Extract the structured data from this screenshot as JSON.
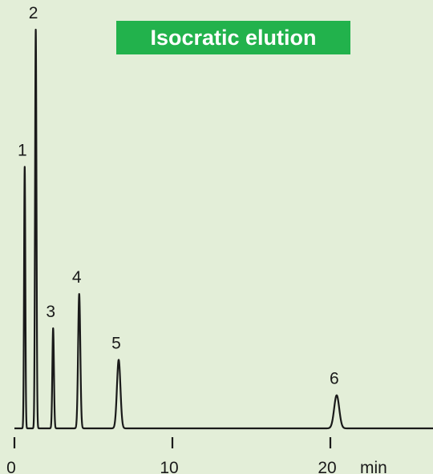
{
  "chart_data": {
    "type": "line",
    "title": "Isocratic elution",
    "xlabel": "min",
    "ylabel": "",
    "xlim": [
      0,
      26.5
    ],
    "ylim": [
      0,
      100
    ],
    "x_ticks": [
      0,
      10,
      20
    ],
    "grid": false,
    "baseline": 0,
    "peaks": [
      {
        "label": "1",
        "x": 0.65,
        "height": 65.6,
        "width": 0.04
      },
      {
        "label": "2",
        "x": 1.35,
        "height": 100,
        "width": 0.045
      },
      {
        "label": "3",
        "x": 2.45,
        "height": 25.1,
        "width": 0.05
      },
      {
        "label": "4",
        "x": 4.1,
        "height": 33.7,
        "width": 0.07
      },
      {
        "label": "5",
        "x": 6.6,
        "height": 17.2,
        "width": 0.11
      },
      {
        "label": "6",
        "x": 20.4,
        "height": 8.3,
        "width": 0.16
      }
    ],
    "colors": {
      "line": "#1a1a1a",
      "background": "#e3eed8",
      "title_box": "#22b24c"
    }
  }
}
